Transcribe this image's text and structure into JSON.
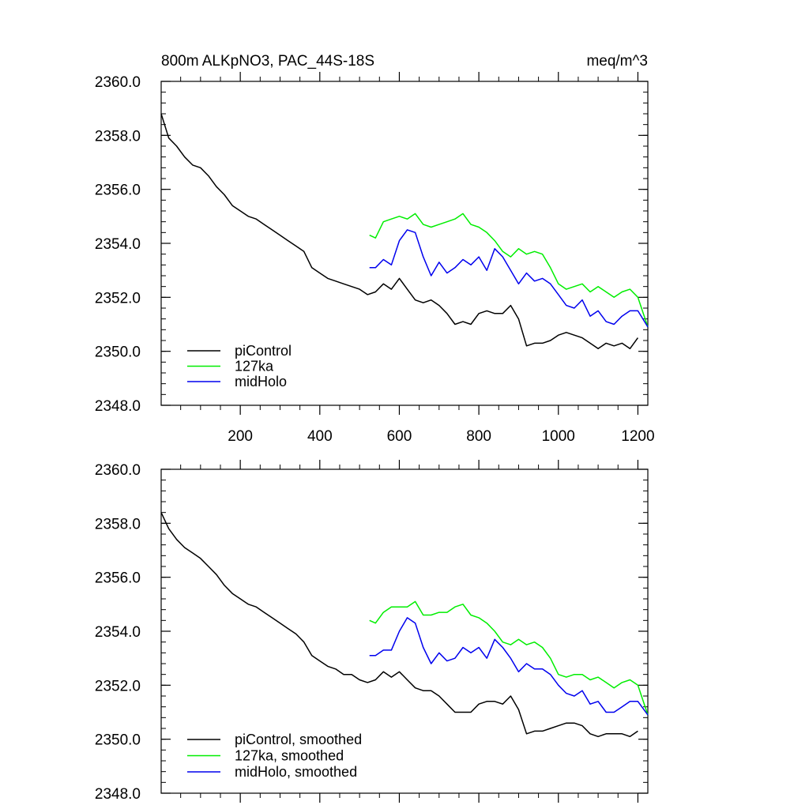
{
  "chart_data": [
    {
      "type": "line",
      "title": "800m ALKpNO3, PAC_44S-18S",
      "units": "meq/m^3",
      "xlabel": "",
      "ylabel": "",
      "xlim": [
        1,
        1225
      ],
      "ylim": [
        2348.0,
        2360.0
      ],
      "xticks": [
        200,
        400,
        600,
        800,
        1000,
        1200
      ],
      "xtick_labels": [
        "200",
        "400",
        "600",
        "800",
        "1000",
        "1200"
      ],
      "yticks": [
        2348.0,
        2350.0,
        2352.0,
        2354.0,
        2356.0,
        2358.0,
        2360.0
      ],
      "ytick_labels": [
        "2348.0",
        "2350.0",
        "2352.0",
        "2354.0",
        "2356.0",
        "2358.0",
        "2360.0"
      ],
      "legend_position": "bottom-left",
      "series": [
        {
          "name": "piControl",
          "color": "#000000",
          "x": [
            1,
            20,
            40,
            60,
            80,
            100,
            120,
            140,
            160,
            180,
            200,
            220,
            240,
            260,
            280,
            300,
            320,
            340,
            360,
            380,
            400,
            420,
            440,
            460,
            480,
            500,
            520,
            540,
            560,
            580,
            600,
            620,
            640,
            660,
            680,
            700,
            720,
            740,
            760,
            780,
            800,
            820,
            840,
            860,
            880,
            900,
            920,
            940,
            960,
            980,
            1000,
            1020,
            1040,
            1060,
            1080,
            1100,
            1120,
            1140,
            1160,
            1180,
            1200
          ],
          "values": [
            2358.8,
            2357.9,
            2357.6,
            2357.2,
            2356.9,
            2356.8,
            2356.5,
            2356.1,
            2355.8,
            2355.4,
            2355.2,
            2355.0,
            2354.9,
            2354.7,
            2354.5,
            2354.3,
            2354.1,
            2353.9,
            2353.7,
            2353.1,
            2352.9,
            2352.7,
            2352.6,
            2352.5,
            2352.4,
            2352.3,
            2352.1,
            2352.2,
            2352.5,
            2352.3,
            2352.7,
            2352.3,
            2351.9,
            2351.8,
            2351.9,
            2351.7,
            2351.4,
            2351.0,
            2351.1,
            2351.0,
            2351.4,
            2351.5,
            2351.4,
            2351.4,
            2351.7,
            2351.2,
            2350.2,
            2350.3,
            2350.3,
            2350.4,
            2350.6,
            2350.7,
            2350.6,
            2350.5,
            2350.3,
            2350.1,
            2350.3,
            2350.2,
            2350.3,
            2350.1,
            2350.5
          ]
        },
        {
          "name": "127ka",
          "color": "#00ee00",
          "x": [
            525,
            540,
            560,
            580,
            600,
            620,
            640,
            660,
            680,
            700,
            720,
            740,
            760,
            780,
            800,
            820,
            840,
            860,
            880,
            900,
            920,
            940,
            960,
            980,
            1000,
            1020,
            1040,
            1060,
            1080,
            1100,
            1120,
            1140,
            1160,
            1180,
            1200,
            1225
          ],
          "values": [
            2354.3,
            2354.2,
            2354.8,
            2354.9,
            2355.0,
            2354.9,
            2355.1,
            2354.7,
            2354.6,
            2354.7,
            2354.8,
            2354.9,
            2355.1,
            2354.7,
            2354.6,
            2354.4,
            2354.1,
            2353.7,
            2353.5,
            2353.8,
            2353.6,
            2353.7,
            2353.6,
            2353.1,
            2352.5,
            2352.3,
            2352.4,
            2352.5,
            2352.2,
            2352.4,
            2352.2,
            2352.0,
            2352.2,
            2352.3,
            2352.0,
            2350.9
          ]
        },
        {
          "name": "midHolo",
          "color": "#0000ee",
          "x": [
            525,
            540,
            560,
            580,
            600,
            620,
            640,
            660,
            680,
            700,
            720,
            740,
            760,
            780,
            800,
            820,
            840,
            860,
            880,
            900,
            920,
            940,
            960,
            980,
            1000,
            1020,
            1040,
            1060,
            1080,
            1100,
            1120,
            1140,
            1160,
            1180,
            1200,
            1225
          ],
          "values": [
            2353.1,
            2353.1,
            2353.4,
            2353.2,
            2354.1,
            2354.5,
            2354.4,
            2353.5,
            2352.8,
            2353.3,
            2352.9,
            2353.1,
            2353.4,
            2353.2,
            2353.5,
            2353.0,
            2353.8,
            2353.5,
            2353.0,
            2352.5,
            2352.9,
            2352.6,
            2352.7,
            2352.5,
            2352.1,
            2351.7,
            2351.6,
            2351.9,
            2351.3,
            2351.5,
            2351.1,
            2351.0,
            2351.3,
            2351.5,
            2351.5,
            2350.9
          ]
        }
      ]
    },
    {
      "type": "line",
      "title": "",
      "xlim": [
        1,
        1225
      ],
      "ylim": [
        2348.0,
        2360.0
      ],
      "yticks": [
        2348.0,
        2350.0,
        2352.0,
        2354.0,
        2356.0,
        2358.0,
        2360.0
      ],
      "ytick_labels": [
        "2348.0",
        "2350.0",
        "2352.0",
        "2354.0",
        "2356.0",
        "2358.0",
        "2360.0"
      ],
      "xticks": [
        200,
        400,
        600,
        800,
        1000,
        1200
      ],
      "xtick_labels": [],
      "legend_position": "bottom-left",
      "series": [
        {
          "name": "piControl, smoothed",
          "color": "#000000",
          "x": [
            1,
            20,
            40,
            60,
            80,
            100,
            120,
            140,
            160,
            180,
            200,
            220,
            240,
            260,
            280,
            300,
            320,
            340,
            360,
            380,
            400,
            420,
            440,
            460,
            480,
            500,
            520,
            540,
            560,
            580,
            600,
            620,
            640,
            660,
            680,
            700,
            720,
            740,
            760,
            780,
            800,
            820,
            840,
            860,
            880,
            900,
            920,
            940,
            960,
            980,
            1000,
            1020,
            1040,
            1060,
            1080,
            1100,
            1120,
            1140,
            1160,
            1180,
            1200
          ],
          "values": [
            2358.4,
            2357.8,
            2357.4,
            2357.1,
            2356.9,
            2356.7,
            2356.4,
            2356.1,
            2355.7,
            2355.4,
            2355.2,
            2355.0,
            2354.9,
            2354.7,
            2354.5,
            2354.3,
            2354.1,
            2353.9,
            2353.6,
            2353.1,
            2352.9,
            2352.7,
            2352.6,
            2352.4,
            2352.4,
            2352.2,
            2352.1,
            2352.2,
            2352.5,
            2352.3,
            2352.5,
            2352.2,
            2351.9,
            2351.8,
            2351.8,
            2351.6,
            2351.3,
            2351.0,
            2351.0,
            2351.0,
            2351.3,
            2351.4,
            2351.4,
            2351.3,
            2351.6,
            2351.1,
            2350.2,
            2350.3,
            2350.3,
            2350.4,
            2350.5,
            2350.6,
            2350.6,
            2350.5,
            2350.2,
            2350.1,
            2350.2,
            2350.2,
            2350.2,
            2350.1,
            2350.3
          ]
        },
        {
          "name": "127ka, smoothed",
          "color": "#00ee00",
          "x": [
            525,
            540,
            560,
            580,
            600,
            620,
            640,
            660,
            680,
            700,
            720,
            740,
            760,
            780,
            800,
            820,
            840,
            860,
            880,
            900,
            920,
            940,
            960,
            980,
            1000,
            1020,
            1040,
            1060,
            1080,
            1100,
            1120,
            1140,
            1160,
            1180,
            1200,
            1225
          ],
          "values": [
            2354.4,
            2354.3,
            2354.7,
            2354.9,
            2354.9,
            2354.9,
            2355.1,
            2354.6,
            2354.6,
            2354.7,
            2354.7,
            2354.9,
            2355.0,
            2354.6,
            2354.5,
            2354.3,
            2354.0,
            2353.6,
            2353.5,
            2353.7,
            2353.5,
            2353.6,
            2353.4,
            2353.0,
            2352.4,
            2352.3,
            2352.4,
            2352.4,
            2352.2,
            2352.3,
            2352.1,
            2351.9,
            2352.1,
            2352.2,
            2352.0,
            2350.9
          ]
        },
        {
          "name": "midHolo, smoothed",
          "color": "#0000ee",
          "x": [
            525,
            540,
            560,
            580,
            600,
            620,
            640,
            660,
            680,
            700,
            720,
            740,
            760,
            780,
            800,
            820,
            840,
            860,
            880,
            900,
            920,
            940,
            960,
            980,
            1000,
            1020,
            1040,
            1060,
            1080,
            1100,
            1120,
            1140,
            1160,
            1180,
            1200,
            1225
          ],
          "values": [
            2353.1,
            2353.1,
            2353.3,
            2353.3,
            2354.0,
            2354.5,
            2354.3,
            2353.4,
            2352.8,
            2353.2,
            2352.9,
            2353.0,
            2353.4,
            2353.2,
            2353.4,
            2353.0,
            2353.7,
            2353.4,
            2353.0,
            2352.5,
            2352.8,
            2352.6,
            2352.6,
            2352.4,
            2352.0,
            2351.7,
            2351.6,
            2351.8,
            2351.3,
            2351.4,
            2351.0,
            2351.0,
            2351.2,
            2351.4,
            2351.4,
            2350.9
          ]
        }
      ]
    }
  ]
}
